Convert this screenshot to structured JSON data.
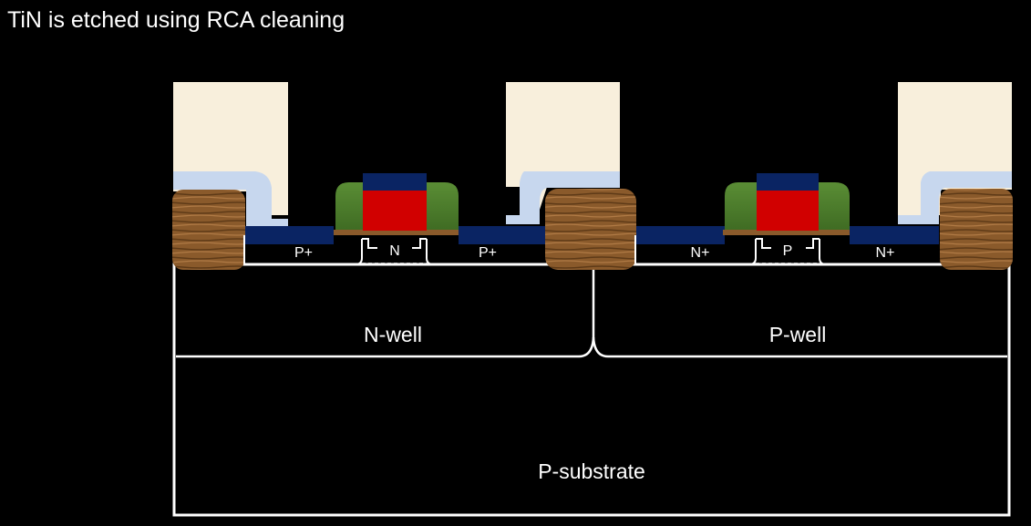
{
  "title": "TiN is etched using RCA cleaning",
  "regions": {
    "p_substrate": "P-substrate",
    "n_well": "N-well",
    "p_well": "P-well"
  },
  "diffusions": {
    "pmos_source": "P+",
    "pmos_channel": "N",
    "pmos_drain": "P+",
    "nmos_source": "N+",
    "nmos_channel": "P",
    "nmos_drain": "N+"
  },
  "colors": {
    "background": "#000000",
    "outline": "#ffffff",
    "oxide_fill": "#f8efdc",
    "oxide_shadow": "#c7d7ee",
    "silicide": "#0a2463",
    "gate_poly": "#d10000",
    "spacer": "#4a7a2c",
    "isolation": "#8a5a2b"
  }
}
